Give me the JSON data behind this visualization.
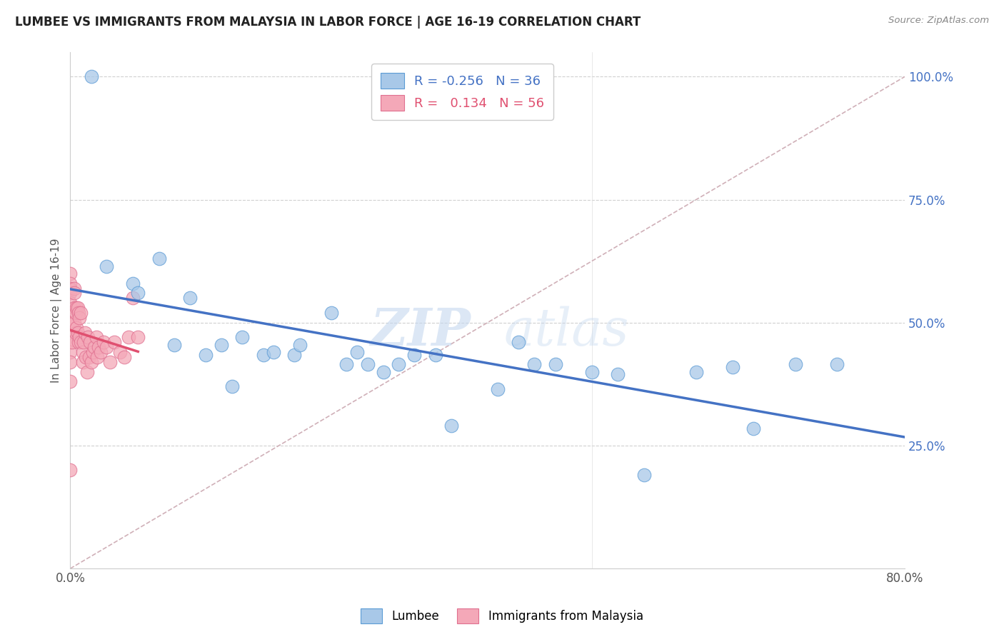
{
  "title": "LUMBEE VS IMMIGRANTS FROM MALAYSIA IN LABOR FORCE | AGE 16-19 CORRELATION CHART",
  "source": "Source: ZipAtlas.com",
  "ylabel": "In Labor Force | Age 16-19",
  "xlim": [
    0.0,
    0.8
  ],
  "ylim": [
    0.0,
    1.05
  ],
  "x_ticks": [
    0.0,
    0.1,
    0.2,
    0.3,
    0.4,
    0.5,
    0.6,
    0.7,
    0.8
  ],
  "y_ticks_right": [
    0.25,
    0.5,
    0.75,
    1.0
  ],
  "y_tick_labels_right": [
    "25.0%",
    "50.0%",
    "75.0%",
    "100.0%"
  ],
  "lumbee_color": "#a8c8e8",
  "malaysia_color": "#f4a8b8",
  "lumbee_edge_color": "#5b9bd5",
  "malaysia_edge_color": "#e07090",
  "lumbee_line_color": "#4472c4",
  "malaysia_line_color": "#e05070",
  "diagonal_color": "#d0b0b8",
  "watermark_zip": "ZIP",
  "watermark_atlas": "atlas",
  "legend_r_lumbee": "-0.256",
  "legend_n_lumbee": "36",
  "legend_r_malaysia": "0.134",
  "legend_n_malaysia": "56",
  "lumbee_x": [
    0.02,
    0.035,
    0.06,
    0.065,
    0.085,
    0.1,
    0.115,
    0.13,
    0.145,
    0.155,
    0.165,
    0.185,
    0.195,
    0.215,
    0.22,
    0.25,
    0.265,
    0.275,
    0.285,
    0.3,
    0.315,
    0.33,
    0.35,
    0.365,
    0.41,
    0.43,
    0.445,
    0.465,
    0.5,
    0.525,
    0.55,
    0.6,
    0.635,
    0.655,
    0.695,
    0.735
  ],
  "lumbee_y": [
    1.0,
    0.615,
    0.58,
    0.56,
    0.63,
    0.455,
    0.55,
    0.435,
    0.455,
    0.37,
    0.47,
    0.435,
    0.44,
    0.435,
    0.455,
    0.52,
    0.415,
    0.44,
    0.415,
    0.4,
    0.415,
    0.435,
    0.435,
    0.29,
    0.365,
    0.46,
    0.415,
    0.415,
    0.4,
    0.395,
    0.19,
    0.4,
    0.41,
    0.285,
    0.415,
    0.415
  ],
  "malaysia_x": [
    0.0,
    0.0,
    0.0,
    0.0,
    0.0,
    0.0,
    0.0,
    0.0,
    0.0,
    0.0,
    0.0,
    0.0,
    0.0,
    0.002,
    0.002,
    0.004,
    0.004,
    0.004,
    0.004,
    0.005,
    0.005,
    0.006,
    0.006,
    0.007,
    0.007,
    0.008,
    0.008,
    0.009,
    0.009,
    0.01,
    0.01,
    0.012,
    0.012,
    0.013,
    0.014,
    0.015,
    0.016,
    0.017,
    0.018,
    0.019,
    0.02,
    0.022,
    0.023,
    0.025,
    0.026,
    0.027,
    0.029,
    0.032,
    0.035,
    0.038,
    0.042,
    0.048,
    0.052,
    0.056,
    0.06,
    0.065
  ],
  "malaysia_y": [
    0.6,
    0.58,
    0.57,
    0.56,
    0.54,
    0.52,
    0.5,
    0.48,
    0.46,
    0.44,
    0.42,
    0.38,
    0.2,
    0.5,
    0.46,
    0.57,
    0.56,
    0.53,
    0.5,
    0.52,
    0.48,
    0.53,
    0.49,
    0.53,
    0.48,
    0.52,
    0.46,
    0.51,
    0.47,
    0.52,
    0.46,
    0.44,
    0.42,
    0.46,
    0.48,
    0.43,
    0.4,
    0.47,
    0.43,
    0.46,
    0.42,
    0.44,
    0.45,
    0.47,
    0.43,
    0.45,
    0.44,
    0.46,
    0.45,
    0.42,
    0.46,
    0.44,
    0.43,
    0.47,
    0.55,
    0.47
  ],
  "lumbee_trend_x": [
    0.02,
    0.735
  ],
  "malaysia_trend_x": [
    0.0,
    0.065
  ]
}
